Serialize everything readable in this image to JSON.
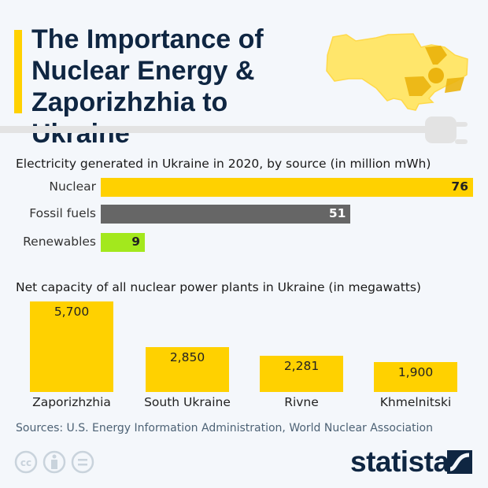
{
  "title": "The Importance of Nuclear Energy & Zaporizhzhia to Ukraine",
  "colors": {
    "accent": "#ffd100",
    "title": "#0f2642",
    "fossil": "#666666",
    "renewables": "#a3e81d",
    "background": "#f4f7fb"
  },
  "icons": [
    "ukraine-map-icon",
    "radiation-icon",
    "power-plug-icon",
    "cc-icon",
    "attribution-icon",
    "no-derivatives-icon",
    "statista-logo-icon"
  ],
  "chart_data": [
    {
      "type": "bar",
      "orientation": "horizontal",
      "title": "Electricity generated in Ukraine in 2020, by source (in million mWh)",
      "categories": [
        "Nuclear",
        "Fossil fuels",
        "Renewables"
      ],
      "values": [
        76,
        51,
        9
      ],
      "labels": [
        "76",
        "51",
        "9"
      ],
      "colors": [
        "#ffd100",
        "#666666",
        "#a3e81d"
      ],
      "grid": false
    },
    {
      "type": "bar",
      "orientation": "vertical",
      "title": "Net capacity of all nuclear power plants in Ukraine (in megawatts)",
      "categories": [
        "Zaporizhzhia",
        "South Ukraine",
        "Rivne",
        "Khmelnitski"
      ],
      "values": [
        5700,
        2850,
        2281,
        1900
      ],
      "labels": [
        "5,700",
        "2,850",
        "2,281",
        "1,900"
      ],
      "grid": false
    }
  ],
  "source": "Sources: U.S. Energy Information Administration, World Nuclear Association",
  "brand": "statista"
}
